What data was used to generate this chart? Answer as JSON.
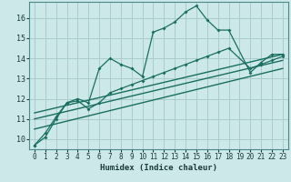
{
  "xlabel": "Humidex (Indice chaleur)",
  "background_color": "#cce8e8",
  "grid_color": "#aacccc",
  "line_color": "#1a6e60",
  "xlim": [
    -0.5,
    23.5
  ],
  "ylim": [
    9.5,
    16.8
  ],
  "yticks": [
    10,
    11,
    12,
    13,
    14,
    15,
    16
  ],
  "xticks": [
    0,
    1,
    2,
    3,
    4,
    5,
    6,
    7,
    8,
    9,
    10,
    11,
    12,
    13,
    14,
    15,
    16,
    17,
    18,
    19,
    20,
    21,
    22,
    23
  ],
  "series1_x": [
    0,
    1,
    2,
    3,
    4,
    5,
    6,
    7,
    8,
    9,
    10,
    11,
    12,
    13,
    14,
    15,
    16,
    17,
    18,
    20,
    21,
    22,
    23
  ],
  "series1_y": [
    9.7,
    10.3,
    11.1,
    11.8,
    12.0,
    11.8,
    13.5,
    14.0,
    13.7,
    13.5,
    13.1,
    15.3,
    15.5,
    15.8,
    16.3,
    16.6,
    15.9,
    15.4,
    15.4,
    13.3,
    13.8,
    14.2,
    14.2
  ],
  "series2_x": [
    0,
    1,
    2,
    3,
    4,
    5,
    6,
    7,
    8,
    9,
    10,
    11,
    12,
    13,
    14,
    15,
    16,
    17,
    18,
    20,
    21,
    22,
    23
  ],
  "series2_y": [
    9.7,
    10.1,
    11.0,
    11.8,
    11.9,
    11.5,
    11.8,
    12.3,
    12.5,
    12.7,
    12.9,
    13.1,
    13.3,
    13.5,
    13.7,
    13.9,
    14.1,
    14.3,
    14.5,
    13.5,
    13.7,
    13.9,
    14.1
  ],
  "line1_x": [
    0,
    23
  ],
  "line1_y": [
    10.5,
    13.5
  ],
  "line2_x": [
    0,
    23
  ],
  "line2_y": [
    11.0,
    13.9
  ],
  "line3_x": [
    0,
    23
  ],
  "line3_y": [
    11.3,
    14.2
  ]
}
